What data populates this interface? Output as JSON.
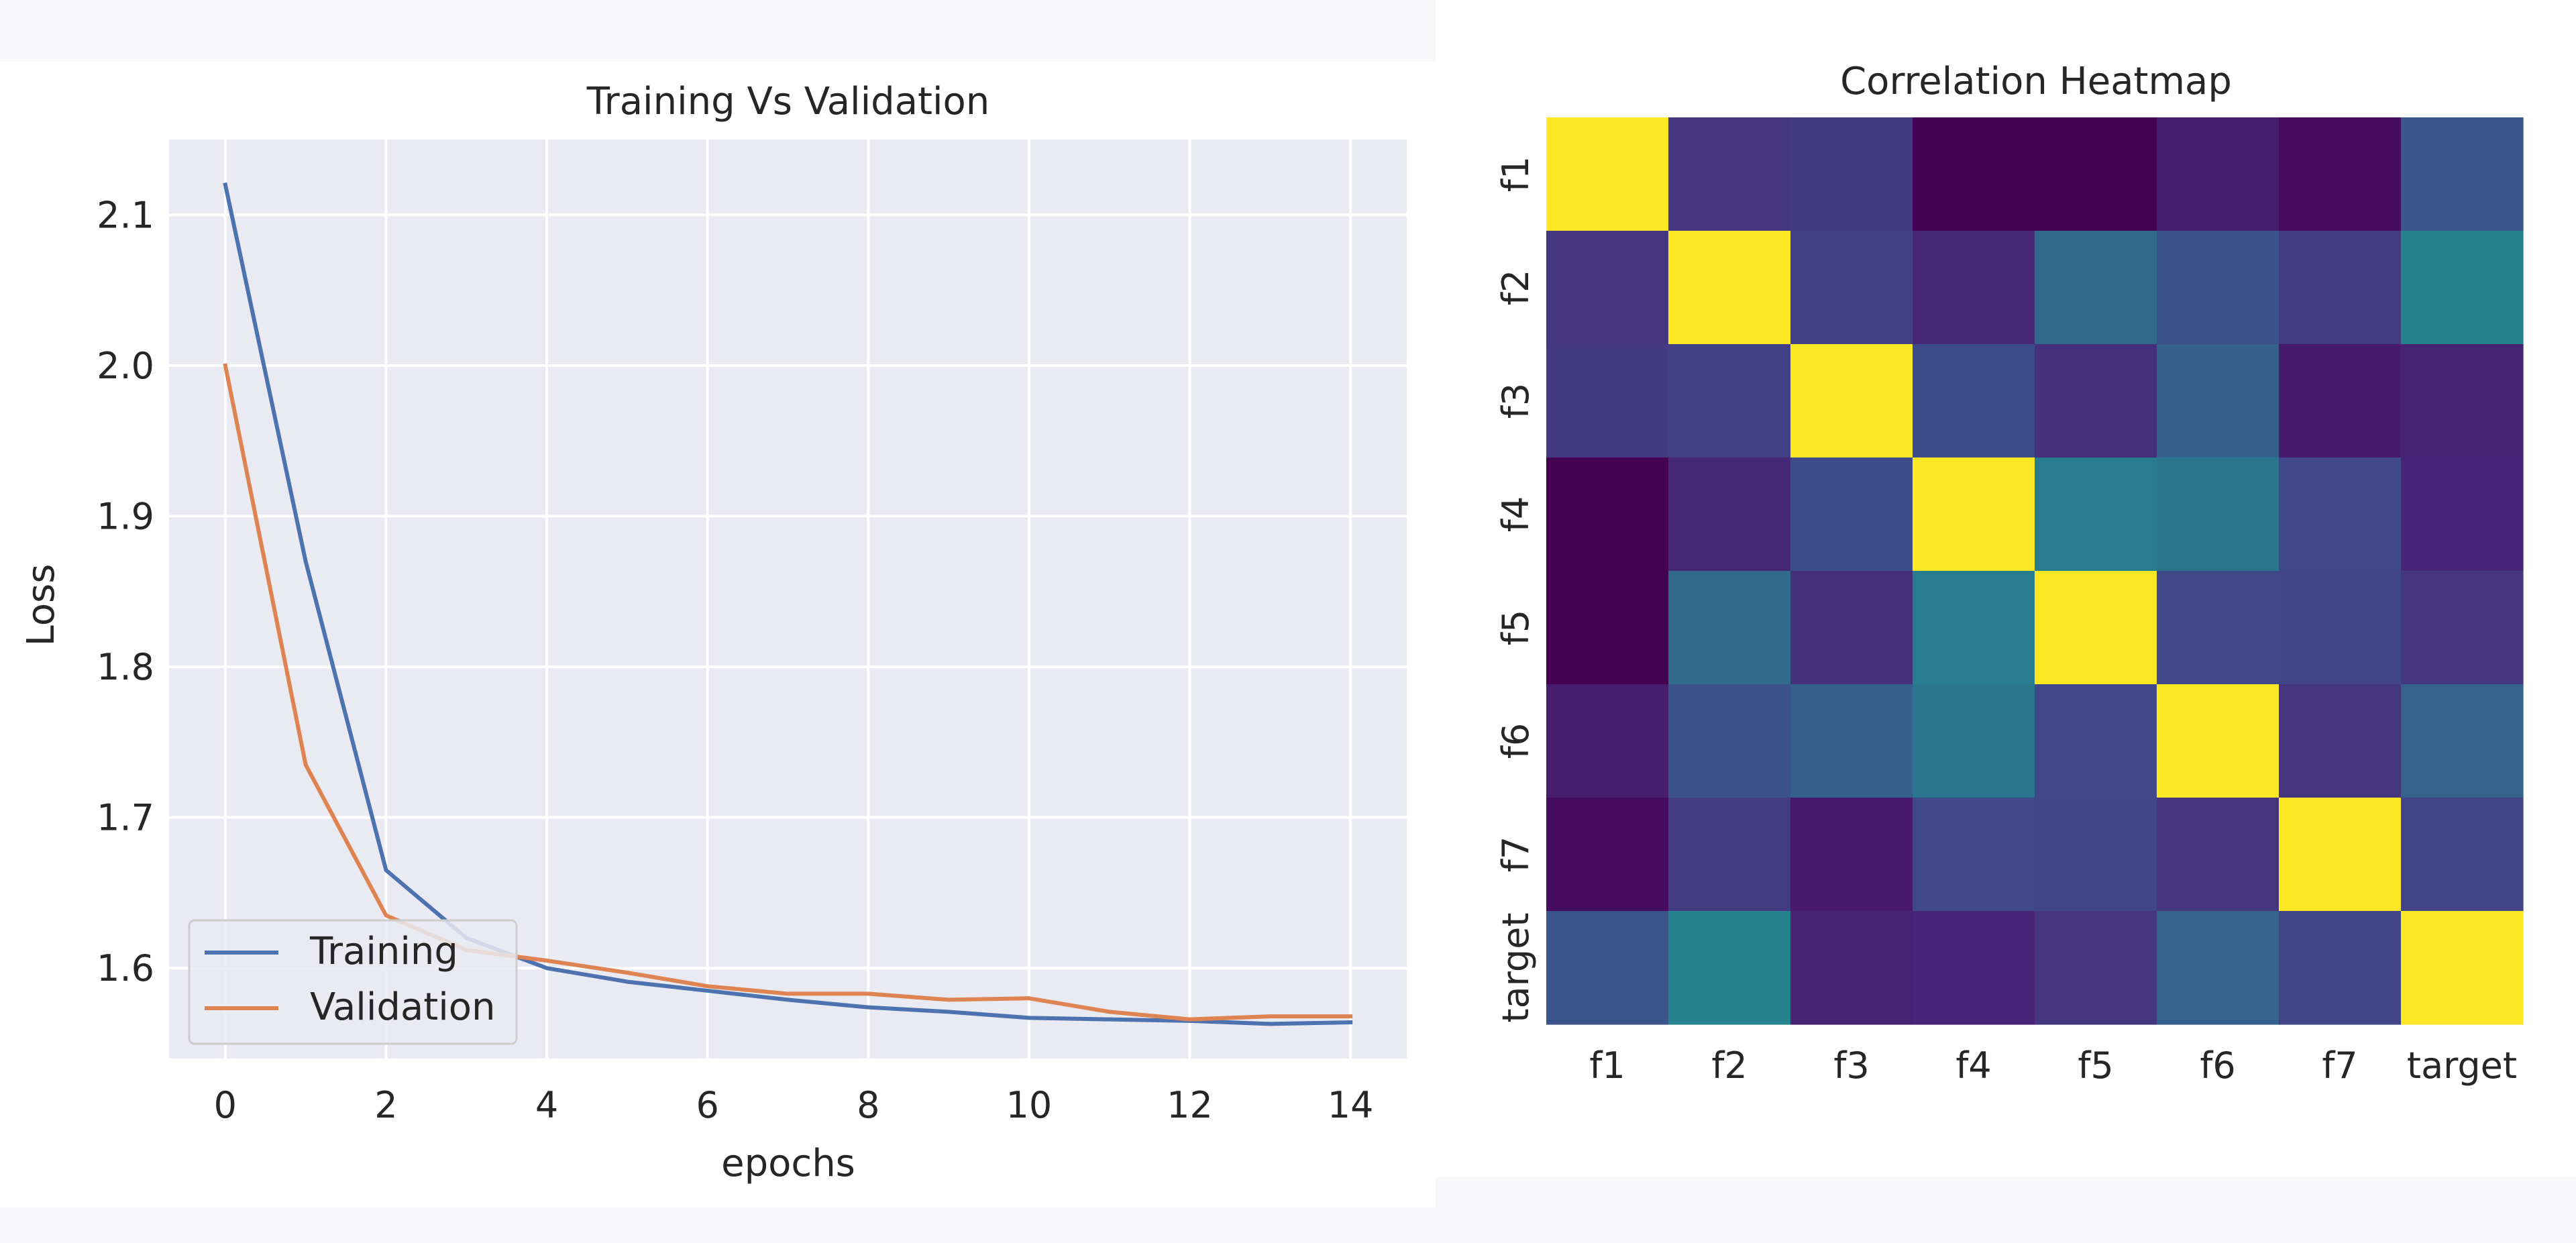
{
  "chart_data": [
    {
      "type": "line",
      "title": "Training Vs Validation",
      "xlabel": "epochs",
      "ylabel": "Loss",
      "xlim": [
        -0.7,
        14.7
      ],
      "ylim": [
        1.54,
        2.15
      ],
      "xticks": [
        0,
        2,
        4,
        6,
        8,
        10,
        12,
        14
      ],
      "yticks": [
        1.6,
        1.7,
        1.8,
        1.9,
        2.0,
        2.1
      ],
      "ytick_labels": [
        "1.6",
        "1.7",
        "1.8",
        "1.9",
        "2.0",
        "2.1"
      ],
      "grid": true,
      "legend_position": "lower-left",
      "x": [
        0,
        1,
        2,
        3,
        4,
        5,
        6,
        7,
        8,
        9,
        10,
        11,
        12,
        13,
        14
      ],
      "series": [
        {
          "name": "Training",
          "color": "#4c72b0",
          "values": [
            2.12,
            1.87,
            1.665,
            1.62,
            1.6,
            1.591,
            1.585,
            1.579,
            1.574,
            1.571,
            1.567,
            1.566,
            1.565,
            1.563,
            1.564
          ]
        },
        {
          "name": "Validation",
          "color": "#dd8452",
          "values": [
            2.0,
            1.735,
            1.635,
            1.612,
            1.605,
            1.597,
            1.588,
            1.583,
            1.583,
            1.579,
            1.58,
            1.571,
            1.566,
            1.568,
            1.568
          ]
        }
      ]
    },
    {
      "type": "heatmap",
      "title": "Correlation Heatmap",
      "x_labels": [
        "f1",
        "f2",
        "f3",
        "f4",
        "f5",
        "f6",
        "f7",
        "target"
      ],
      "y_labels": [
        "f1",
        "f2",
        "f3",
        "f4",
        "f5",
        "f6",
        "f7",
        "target"
      ],
      "colormap": "viridis",
      "vmin": 0.0,
      "vmax": 1.0,
      "values": [
        [
          1.0,
          0.2,
          0.21,
          0.0,
          0.0,
          0.1,
          0.04,
          0.33
        ],
        [
          0.2,
          1.0,
          0.24,
          0.14,
          0.43,
          0.31,
          0.22,
          0.55
        ],
        [
          0.21,
          0.24,
          1.0,
          0.29,
          0.17,
          0.38,
          0.09,
          0.12
        ],
        [
          0.0,
          0.14,
          0.29,
          1.0,
          0.52,
          0.49,
          0.27,
          0.13
        ],
        [
          0.0,
          0.43,
          0.17,
          0.52,
          1.0,
          0.27,
          0.26,
          0.2
        ],
        [
          0.1,
          0.31,
          0.38,
          0.49,
          0.27,
          1.0,
          0.19,
          0.39
        ],
        [
          0.04,
          0.22,
          0.09,
          0.27,
          0.26,
          0.19,
          1.0,
          0.25
        ],
        [
          0.33,
          0.55,
          0.12,
          0.13,
          0.2,
          0.39,
          0.25,
          1.0
        ]
      ]
    }
  ]
}
